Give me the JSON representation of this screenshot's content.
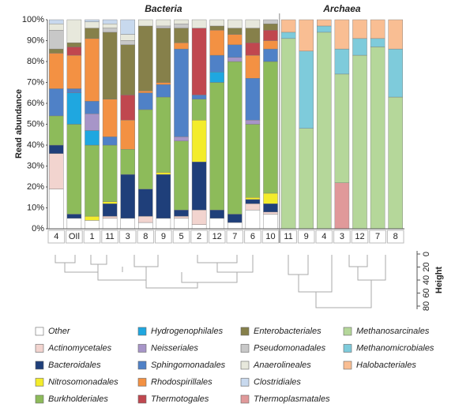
{
  "chart_data": {
    "type": "stacked_bar",
    "y_label": "Read abundance",
    "groups": [
      {
        "title": "Bacteria",
        "count": 13
      },
      {
        "title": "Archaea",
        "count": 7
      }
    ],
    "categories": [
      "4",
      "OIl",
      "1",
      "11",
      "3",
      "8",
      "9",
      "5",
      "2",
      "12",
      "7",
      "6",
      "10",
      "11",
      "9",
      "4",
      "3",
      "12",
      "7",
      "8"
    ],
    "ylim": [
      0,
      100
    ],
    "yticks": [
      {
        "value": 0,
        "label": "0%"
      },
      {
        "value": 10,
        "label": "10%"
      },
      {
        "value": 20,
        "label": "20%"
      },
      {
        "value": 30,
        "label": "30%"
      },
      {
        "value": 40,
        "label": "40%"
      },
      {
        "value": 50,
        "label": "50%"
      },
      {
        "value": 60,
        "label": "60%"
      },
      {
        "value": 70,
        "label": "70%"
      },
      {
        "value": 80,
        "label": "80%"
      },
      {
        "value": 90,
        "label": "90%"
      },
      {
        "value": 100,
        "label": "100%"
      }
    ],
    "series": [
      {
        "name": "Other",
        "color": "#ffffff",
        "values": [
          19,
          5,
          4,
          5,
          5,
          3,
          5,
          5,
          2,
          5,
          3,
          9,
          7,
          0,
          0,
          0,
          0,
          0,
          0,
          0
        ]
      },
      {
        "name": "Actinomycetales",
        "color": "#f2d4cf",
        "values": [
          17,
          0,
          0,
          1,
          0,
          3,
          0,
          1,
          7,
          0,
          0,
          3,
          1,
          0,
          0,
          0,
          0,
          0,
          0,
          0
        ]
      },
      {
        "name": "Bacteroidales",
        "color": "#1f3f7a",
        "values": [
          4,
          2,
          0,
          6,
          21,
          13,
          21,
          3,
          23,
          4,
          4,
          2,
          4,
          0,
          0,
          0,
          0,
          0,
          0,
          0
        ]
      },
      {
        "name": "Nitrosomonadales",
        "color": "#f3ec2b",
        "values": [
          0,
          0,
          2,
          1,
          0,
          0,
          1,
          0,
          20,
          0,
          0,
          1,
          5,
          0,
          0,
          0,
          0,
          0,
          0,
          0
        ]
      },
      {
        "name": "Burkholderiales",
        "color": "#8dbb5a",
        "values": [
          14,
          43,
          34,
          27,
          12,
          38,
          36,
          33,
          10,
          61,
          73,
          35,
          63,
          0,
          0,
          0,
          0,
          0,
          0,
          0
        ]
      },
      {
        "name": "Hydrogenophilales",
        "color": "#1fa7e0",
        "values": [
          0,
          15,
          7,
          0,
          0,
          0,
          0,
          0,
          0,
          5,
          0,
          0,
          0,
          0,
          0,
          0,
          0,
          0,
          0,
          0
        ]
      },
      {
        "name": "Neisseriales",
        "color": "#a795c8",
        "values": [
          0,
          0,
          8,
          0,
          0,
          0,
          0,
          2,
          0,
          0,
          2,
          2,
          0,
          0,
          0,
          0,
          0,
          0,
          0,
          0
        ]
      },
      {
        "name": "Sphingomonadales",
        "color": "#4f81c7",
        "values": [
          13,
          2,
          6,
          4,
          0,
          8,
          6,
          42,
          2,
          8,
          6,
          20,
          6,
          0,
          0,
          0,
          0,
          0,
          0,
          0
        ]
      },
      {
        "name": "Rhodospirillales",
        "color": "#f39143",
        "values": [
          17,
          16,
          30,
          18,
          14,
          1,
          1,
          3,
          0,
          12,
          5,
          11,
          4,
          0,
          0,
          0,
          0,
          0,
          0,
          0
        ]
      },
      {
        "name": "Thermotogales",
        "color": "#c0474f",
        "values": [
          0,
          4,
          0,
          0,
          12,
          0,
          0,
          0,
          32,
          0,
          0,
          6,
          5,
          0,
          0,
          0,
          0,
          0,
          0,
          0
        ]
      },
      {
        "name": "Enterobacteriales",
        "color": "#86804a",
        "values": [
          2,
          2,
          5,
          32,
          24,
          31,
          26,
          7,
          0,
          2,
          3,
          7,
          3,
          0,
          0,
          0,
          0,
          0,
          0,
          0
        ]
      },
      {
        "name": "Pseudomonadales",
        "color": "#c8c8c8",
        "values": [
          9,
          0,
          0,
          2,
          2,
          0,
          1,
          2,
          0,
          0,
          0,
          0,
          2,
          0,
          0,
          0,
          0,
          0,
          0,
          0
        ]
      },
      {
        "name": "Anaerolineales",
        "color": "#e7e8dc",
        "values": [
          3,
          11,
          3,
          2,
          3,
          3,
          3,
          2,
          4,
          3,
          4,
          4,
          0,
          0,
          0,
          0,
          0,
          0,
          0,
          0
        ]
      },
      {
        "name": "Clostridiales",
        "color": "#c8d9ee",
        "values": [
          2,
          0,
          1,
          2,
          7,
          0,
          0,
          0,
          0,
          0,
          0,
          0,
          0,
          0,
          0,
          0,
          0,
          0,
          0,
          0
        ]
      },
      {
        "name": "Thermoplasmatales",
        "color": "#e0999a",
        "values": [
          0,
          0,
          0,
          0,
          0,
          0,
          0,
          0,
          0,
          0,
          0,
          0,
          0,
          0,
          0,
          0,
          22,
          0,
          0,
          0
        ]
      },
      {
        "name": "Methanosarcinales",
        "color": "#b5d79a",
        "values": [
          0,
          0,
          0,
          0,
          0,
          0,
          0,
          0,
          0,
          0,
          0,
          0,
          0,
          91,
          48,
          94,
          52,
          83,
          87,
          63
        ]
      },
      {
        "name": "Methanomicrobiales",
        "color": "#7ecbdb",
        "values": [
          0,
          0,
          0,
          0,
          0,
          0,
          0,
          0,
          0,
          0,
          0,
          0,
          0,
          3,
          37,
          3,
          12,
          8,
          4,
          23
        ]
      },
      {
        "name": "Halobacteriales",
        "color": "#f9be93",
        "values": [
          0,
          0,
          0,
          0,
          0,
          0,
          0,
          0,
          0,
          0,
          0,
          0,
          0,
          6,
          15,
          3,
          14,
          9,
          9,
          14
        ]
      }
    ],
    "height_axis": {
      "title": "Height",
      "ticks": [
        0,
        20,
        40,
        60,
        80
      ]
    }
  }
}
